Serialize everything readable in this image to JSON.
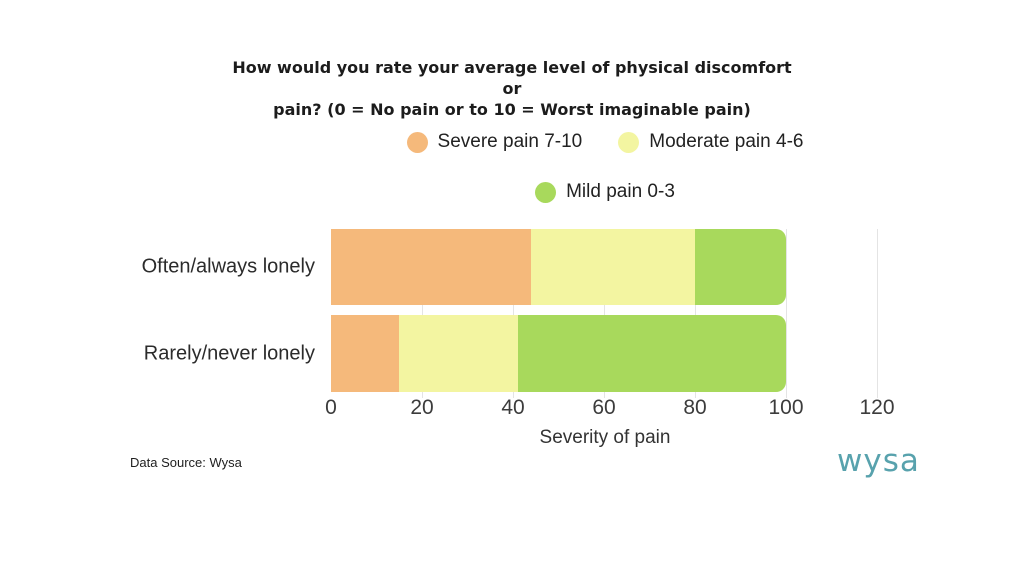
{
  "header": {
    "title_line1": "How would you rate your average level of physical discomfort or",
    "title_line2": "pain?  (0 = No pain or to 10 = Worst imaginable pain)"
  },
  "chart_data": {
    "type": "bar",
    "orientation": "horizontal",
    "stacked": true,
    "title": "How would you rate your average level of physical discomfort or pain?  (0 = No pain or to 10 = Worst imaginable pain)",
    "categories": [
      "Often/always lonely",
      "Rarely/never lonely"
    ],
    "series": [
      {
        "name": "Severe pain 7-10",
        "color": "#f5b97b",
        "values": [
          44,
          15
        ]
      },
      {
        "name": "Moderate pain 4-6",
        "color": "#f3f5a1",
        "values": [
          36,
          26
        ]
      },
      {
        "name": "Mild pain 0-3",
        "color": "#a8d95c",
        "values": [
          20,
          59
        ]
      }
    ],
    "xlabel": "Severity of pain",
    "xticks": [
      0,
      20,
      40,
      60,
      80,
      100,
      120
    ],
    "xlim": [
      0,
      120
    ],
    "legend_position": "top-center",
    "grid": "vertical-light"
  },
  "footer": {
    "source": "Data Source: Wysa",
    "logo": "wysa"
  },
  "colors": {
    "background": "#ffffff",
    "gridline": "#e4e4e4",
    "title_text": "#1c1c1c",
    "axis_text": "#3c3c3c",
    "logo_teal": "#58a2ad"
  }
}
